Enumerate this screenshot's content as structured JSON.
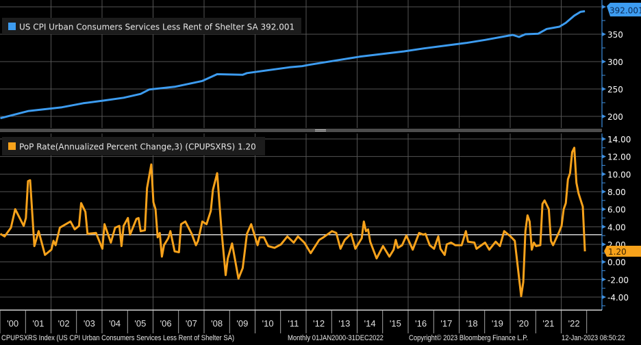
{
  "chart_data": [
    {
      "type": "line",
      "legend": {
        "label": "US CPI Urban Consumers Services Less Rent of Shelter SA",
        "last_value": "392.001",
        "placement": "top-left"
      },
      "last_value_badge": "392.001",
      "ylim": [
        180,
        405
      ],
      "yticks": [
        "350",
        "300",
        "250",
        "200"
      ],
      "ytick_values": [
        350,
        300,
        250,
        200
      ],
      "grid": true,
      "color": "#3d9cf0",
      "series": [
        [
          "2000-01",
          196.6
        ],
        [
          "2001-02",
          209.6
        ],
        [
          "2002-06",
          216.6
        ],
        [
          "2003-04",
          224
        ],
        [
          "2004-02",
          229
        ],
        [
          "2004-11",
          234
        ],
        [
          "2005-07",
          241
        ],
        [
          "2005-11",
          249
        ],
        [
          "2006-11",
          254
        ],
        [
          "2007-12",
          264.6
        ],
        [
          "2008-07",
          277
        ],
        [
          "2009-07",
          276
        ],
        [
          "2009-09",
          279
        ],
        [
          "2011-05",
          289.6
        ],
        [
          "2011-11",
          291.7
        ],
        [
          "2012-02",
          294
        ],
        [
          "2014-02",
          309
        ],
        [
          "2015-11",
          318.8
        ],
        [
          "2016-08",
          324
        ],
        [
          "2018-04",
          334
        ],
        [
          "2019-01",
          339.6
        ],
        [
          "2020-02",
          348.8
        ],
        [
          "2020-05",
          345
        ],
        [
          "2020-08",
          350
        ],
        [
          "2021-02",
          351
        ],
        [
          "2021-06",
          359.6
        ],
        [
          "2021-12",
          363.8
        ],
        [
          "2022-03",
          370.8
        ],
        [
          "2022-07",
          384
        ],
        [
          "2022-10",
          391
        ],
        [
          "2022-12",
          392.001
        ]
      ]
    },
    {
      "type": "line",
      "legend": {
        "label": "PoP Rate(Annualized Percent Change,3) (CPUPSXRS)",
        "last_value": "1.20",
        "placement": "top-left"
      },
      "last_value_badge": "1.20",
      "ylim": [
        -5,
        14.5
      ],
      "yticks": [
        "14.00",
        "12.00",
        "10.00",
        "8.00",
        "6.00",
        "4.00",
        "2.00",
        "0.00",
        "-2.00",
        "-4.00"
      ],
      "ytick_values": [
        14,
        12,
        10,
        8,
        6,
        4,
        2,
        0,
        -2,
        -4
      ],
      "reference_line": 3.1,
      "grid": true,
      "color": "#f7a21b",
      "series": [
        [
          "2000-01",
          3.2
        ],
        [
          "2000-03",
          2.9
        ],
        [
          "2000-06",
          3.9
        ],
        [
          "2000-08",
          6.0
        ],
        [
          "2000-12",
          4.1
        ],
        [
          "2001-01",
          5.0
        ],
        [
          "2001-02",
          9.2
        ],
        [
          "2001-03",
          9.3
        ],
        [
          "2001-05",
          1.8
        ],
        [
          "2001-07",
          3.5
        ],
        [
          "2001-10",
          0.8
        ],
        [
          "2002-01",
          1.4
        ],
        [
          "2002-02",
          2.4
        ],
        [
          "2002-03",
          1.9
        ],
        [
          "2002-05",
          3.9
        ],
        [
          "2002-10",
          4.6
        ],
        [
          "2002-12",
          3.7
        ],
        [
          "2003-02",
          4.1
        ],
        [
          "2003-03",
          6.7
        ],
        [
          "2003-05",
          5.7
        ],
        [
          "2003-06",
          3.2
        ],
        [
          "2003-10",
          3.3
        ],
        [
          "2004-01",
          1.5
        ],
        [
          "2004-02",
          4.3
        ],
        [
          "2004-05",
          2.2
        ],
        [
          "2004-07",
          3.9
        ],
        [
          "2004-09",
          4.1
        ],
        [
          "2004-10",
          1.8
        ],
        [
          "2004-11",
          4.1
        ],
        [
          "2005-01",
          5.0
        ],
        [
          "2005-02",
          3.1
        ],
        [
          "2005-05",
          4.9
        ],
        [
          "2005-06",
          5.0
        ],
        [
          "2005-07",
          3.5
        ],
        [
          "2005-09",
          3.6
        ],
        [
          "2005-10",
          8.4
        ],
        [
          "2005-12",
          11.1
        ],
        [
          "2006-01",
          6.8
        ],
        [
          "2006-02",
          6.0
        ],
        [
          "2006-03",
          2.8
        ],
        [
          "2006-04",
          3.3
        ],
        [
          "2006-05",
          0.6
        ],
        [
          "2006-06",
          1.9
        ],
        [
          "2006-08",
          2.7
        ],
        [
          "2006-09",
          3.5
        ],
        [
          "2006-11",
          1.2
        ],
        [
          "2007-01",
          1.1
        ],
        [
          "2007-02",
          4.3
        ],
        [
          "2007-04",
          4.6
        ],
        [
          "2007-07",
          3.2
        ],
        [
          "2007-09",
          1.9
        ],
        [
          "2007-10",
          2.4
        ],
        [
          "2007-11",
          3.5
        ],
        [
          "2007-12",
          4.6
        ],
        [
          "2008-02",
          4.3
        ],
        [
          "2008-04",
          5.8
        ],
        [
          "2008-05",
          8.2
        ],
        [
          "2008-07",
          10.1
        ],
        [
          "2008-09",
          3.7
        ],
        [
          "2008-11",
          -1.5
        ],
        [
          "2008-12",
          0.4
        ],
        [
          "2009-02",
          2.1
        ],
        [
          "2009-05",
          -1.9
        ],
        [
          "2009-07",
          -0.7
        ],
        [
          "2009-09",
          3.2
        ],
        [
          "2009-11",
          4.3
        ],
        [
          "2010-02",
          1.9
        ],
        [
          "2010-03",
          2.8
        ],
        [
          "2010-05",
          2.8
        ],
        [
          "2010-07",
          1.8
        ],
        [
          "2010-10",
          1.6
        ],
        [
          "2011-01",
          2.0
        ],
        [
          "2011-04",
          2.9
        ],
        [
          "2011-07",
          2.2
        ],
        [
          "2011-09",
          2.9
        ],
        [
          "2011-12",
          2.2
        ],
        [
          "2012-03",
          1.0
        ],
        [
          "2012-07",
          2.5
        ],
        [
          "2012-09",
          2.8
        ],
        [
          "2013-01",
          3.5
        ],
        [
          "2013-03",
          3.3
        ],
        [
          "2013-05",
          1.5
        ],
        [
          "2013-07",
          2.5
        ],
        [
          "2013-10",
          3.2
        ],
        [
          "2013-12",
          1.5
        ],
        [
          "2014-03",
          2.7
        ],
        [
          "2014-04",
          4.6
        ],
        [
          "2014-05",
          3.5
        ],
        [
          "2014-06",
          3.7
        ],
        [
          "2014-07",
          2.3
        ],
        [
          "2014-10",
          0.4
        ],
        [
          "2015-01",
          1.8
        ],
        [
          "2015-04",
          0.6
        ],
        [
          "2015-06",
          1.4
        ],
        [
          "2015-07",
          2.5
        ],
        [
          "2015-08",
          1.6
        ],
        [
          "2015-10",
          1.9
        ],
        [
          "2015-12",
          3.0
        ],
        [
          "2016-03",
          1.4
        ],
        [
          "2016-06",
          3.3
        ],
        [
          "2016-08",
          3.1
        ],
        [
          "2016-09",
          3.2
        ],
        [
          "2016-11",
          1.9
        ],
        [
          "2017-01",
          1.5
        ],
        [
          "2017-03",
          2.9
        ],
        [
          "2017-04",
          1.5
        ],
        [
          "2017-06",
          0.8
        ],
        [
          "2017-07",
          2.0
        ],
        [
          "2017-09",
          2.2
        ],
        [
          "2017-11",
          1.9
        ],
        [
          "2018-02",
          1.9
        ],
        [
          "2018-04",
          3.5
        ],
        [
          "2018-05",
          2.3
        ],
        [
          "2018-08",
          2.2
        ],
        [
          "2018-09",
          1.5
        ],
        [
          "2019-01",
          2.2
        ],
        [
          "2019-03",
          1.4
        ],
        [
          "2019-06",
          2.3
        ],
        [
          "2019-08",
          1.8
        ],
        [
          "2019-10",
          3.5
        ],
        [
          "2020-01",
          2.9
        ],
        [
          "2020-03",
          2.4
        ],
        [
          "2020-06",
          -3.9
        ],
        [
          "2020-07",
          -2.3
        ],
        [
          "2020-08",
          3.5
        ],
        [
          "2020-09",
          5.3
        ],
        [
          "2020-10",
          4.6
        ],
        [
          "2020-11",
          1.4
        ],
        [
          "2020-12",
          2.2
        ],
        [
          "2021-01",
          1.8
        ],
        [
          "2021-03",
          1.9
        ],
        [
          "2021-04",
          6.6
        ],
        [
          "2021-05",
          7.0
        ],
        [
          "2021-07",
          6.0
        ],
        [
          "2021-08",
          2.4
        ],
        [
          "2021-09",
          1.9
        ],
        [
          "2021-12",
          3.5
        ],
        [
          "2022-01",
          4.1
        ],
        [
          "2022-02",
          6.0
        ],
        [
          "2022-03",
          6.7
        ],
        [
          "2022-04",
          9.4
        ],
        [
          "2022-05",
          10.1
        ],
        [
          "2022-06",
          12.5
        ],
        [
          "2022-07",
          13.0
        ],
        [
          "2022-08",
          9.0
        ],
        [
          "2022-09",
          7.8
        ],
        [
          "2022-11",
          6.3
        ],
        [
          "2022-12",
          1.2
        ]
      ]
    }
  ],
  "x_axis": {
    "labels": [
      "'00",
      "'01",
      "'02",
      "'03",
      "'04",
      "'05",
      "'06",
      "'07",
      "'08",
      "'09",
      "'10",
      "'11",
      "'12",
      "'13",
      "'14",
      "'15",
      "'16",
      "'17",
      "'18",
      "'19",
      "'20",
      "'21",
      "'22"
    ],
    "range": [
      "2000-01",
      "2022-12"
    ]
  },
  "footer": {
    "index": "CPUPSXRS Index (US CPI Urban Consumers Services Less Rent of Shelter SA)",
    "period": "Monthly 01JAN2000-31DEC2022",
    "copyright": "Copyright© 2023 Bloomberg Finance L.P.",
    "timestamp": "12-Jan-2023 08:50:22"
  }
}
